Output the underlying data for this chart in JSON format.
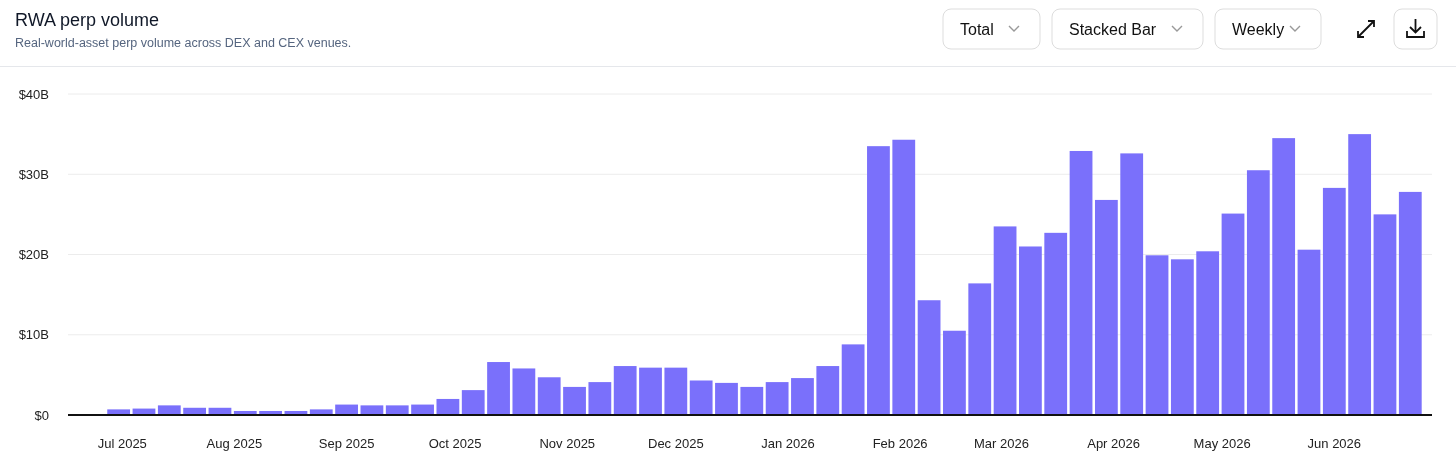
{
  "chart_data": {
    "type": "bar",
    "title": "RWA perp volume",
    "subtitle": "Real-world-asset perp volume across DEX and CEX venues.",
    "annotations": [
      "Total",
      "Stacked Bar",
      "Weekly"
    ],
    "x": [
      "2025-06-30",
      "2025-07-07",
      "2025-07-14",
      "2025-07-21",
      "2025-07-28",
      "2025-08-04",
      "2025-08-11",
      "2025-08-18",
      "2025-08-25",
      "2025-09-01",
      "2025-09-08",
      "2025-09-15",
      "2025-09-22",
      "2025-09-29",
      "2025-10-06",
      "2025-10-13",
      "2025-10-20",
      "2025-10-27",
      "2025-11-03",
      "2025-11-10",
      "2025-11-17",
      "2025-11-24",
      "2025-12-01",
      "2025-12-08",
      "2025-12-15",
      "2025-12-22",
      "2025-12-29",
      "2026-01-05",
      "2026-01-12",
      "2026-01-19",
      "2026-01-26",
      "2026-02-02",
      "2026-02-09",
      "2026-02-16",
      "2026-02-23",
      "2026-03-02",
      "2026-03-09",
      "2026-03-16",
      "2026-03-23",
      "2026-03-30",
      "2026-04-06",
      "2026-04-13",
      "2026-04-20",
      "2026-04-27",
      "2026-05-04",
      "2026-05-11",
      "2026-05-18",
      "2026-05-25",
      "2026-06-01",
      "2026-06-08",
      "2026-06-15",
      "2026-06-22"
    ],
    "values": [
      0.7,
      0.8,
      1.2,
      0.9,
      0.9,
      0.5,
      0.5,
      0.5,
      0.7,
      1.3,
      1.2,
      1.2,
      1.3,
      2.0,
      3.1,
      6.6,
      5.8,
      4.7,
      3.5,
      4.1,
      6.1,
      5.9,
      5.9,
      4.3,
      4.0,
      3.5,
      4.1,
      4.6,
      6.1,
      8.8,
      33.5,
      34.3,
      14.3,
      10.5,
      16.4,
      23.5,
      21.0,
      22.7,
      32.9,
      26.8,
      32.6,
      19.9,
      19.4,
      20.4,
      25.1,
      30.5,
      34.5,
      20.6,
      28.3,
      35.0,
      25.0,
      27.8
    ],
    "color": "#7a70fb",
    "xlim": [
      "2025-06-16",
      "2026-06-28"
    ],
    "xticks": [
      {
        "value": "2025-07-01",
        "label": "Jul 2025"
      },
      {
        "value": "2025-08-01",
        "label": "Aug 2025"
      },
      {
        "value": "2025-09-01",
        "label": "Sep 2025"
      },
      {
        "value": "2025-10-01",
        "label": "Oct 2025"
      },
      {
        "value": "2025-11-01",
        "label": "Nov 2025"
      },
      {
        "value": "2025-12-01",
        "label": "Dec 2025"
      },
      {
        "value": "2026-01-01",
        "label": "Jan 2026"
      },
      {
        "value": "2026-02-01",
        "label": "Feb 2026"
      },
      {
        "value": "2026-03-01",
        "label": "Mar 2026"
      },
      {
        "value": "2026-04-01",
        "label": "Apr 2026"
      },
      {
        "value": "2026-05-01",
        "label": "May 2026"
      },
      {
        "value": "2026-06-01",
        "label": "Jun 2026"
      }
    ],
    "ylim": [
      0,
      40
    ],
    "yticks": [
      {
        "value": 0,
        "label": "$0"
      },
      {
        "value": 10,
        "label": "$10B"
      },
      {
        "value": 20,
        "label": "$20B"
      },
      {
        "value": 30,
        "label": "$30B"
      },
      {
        "value": 40,
        "label": "$40B"
      }
    ],
    "grid": "y"
  }
}
